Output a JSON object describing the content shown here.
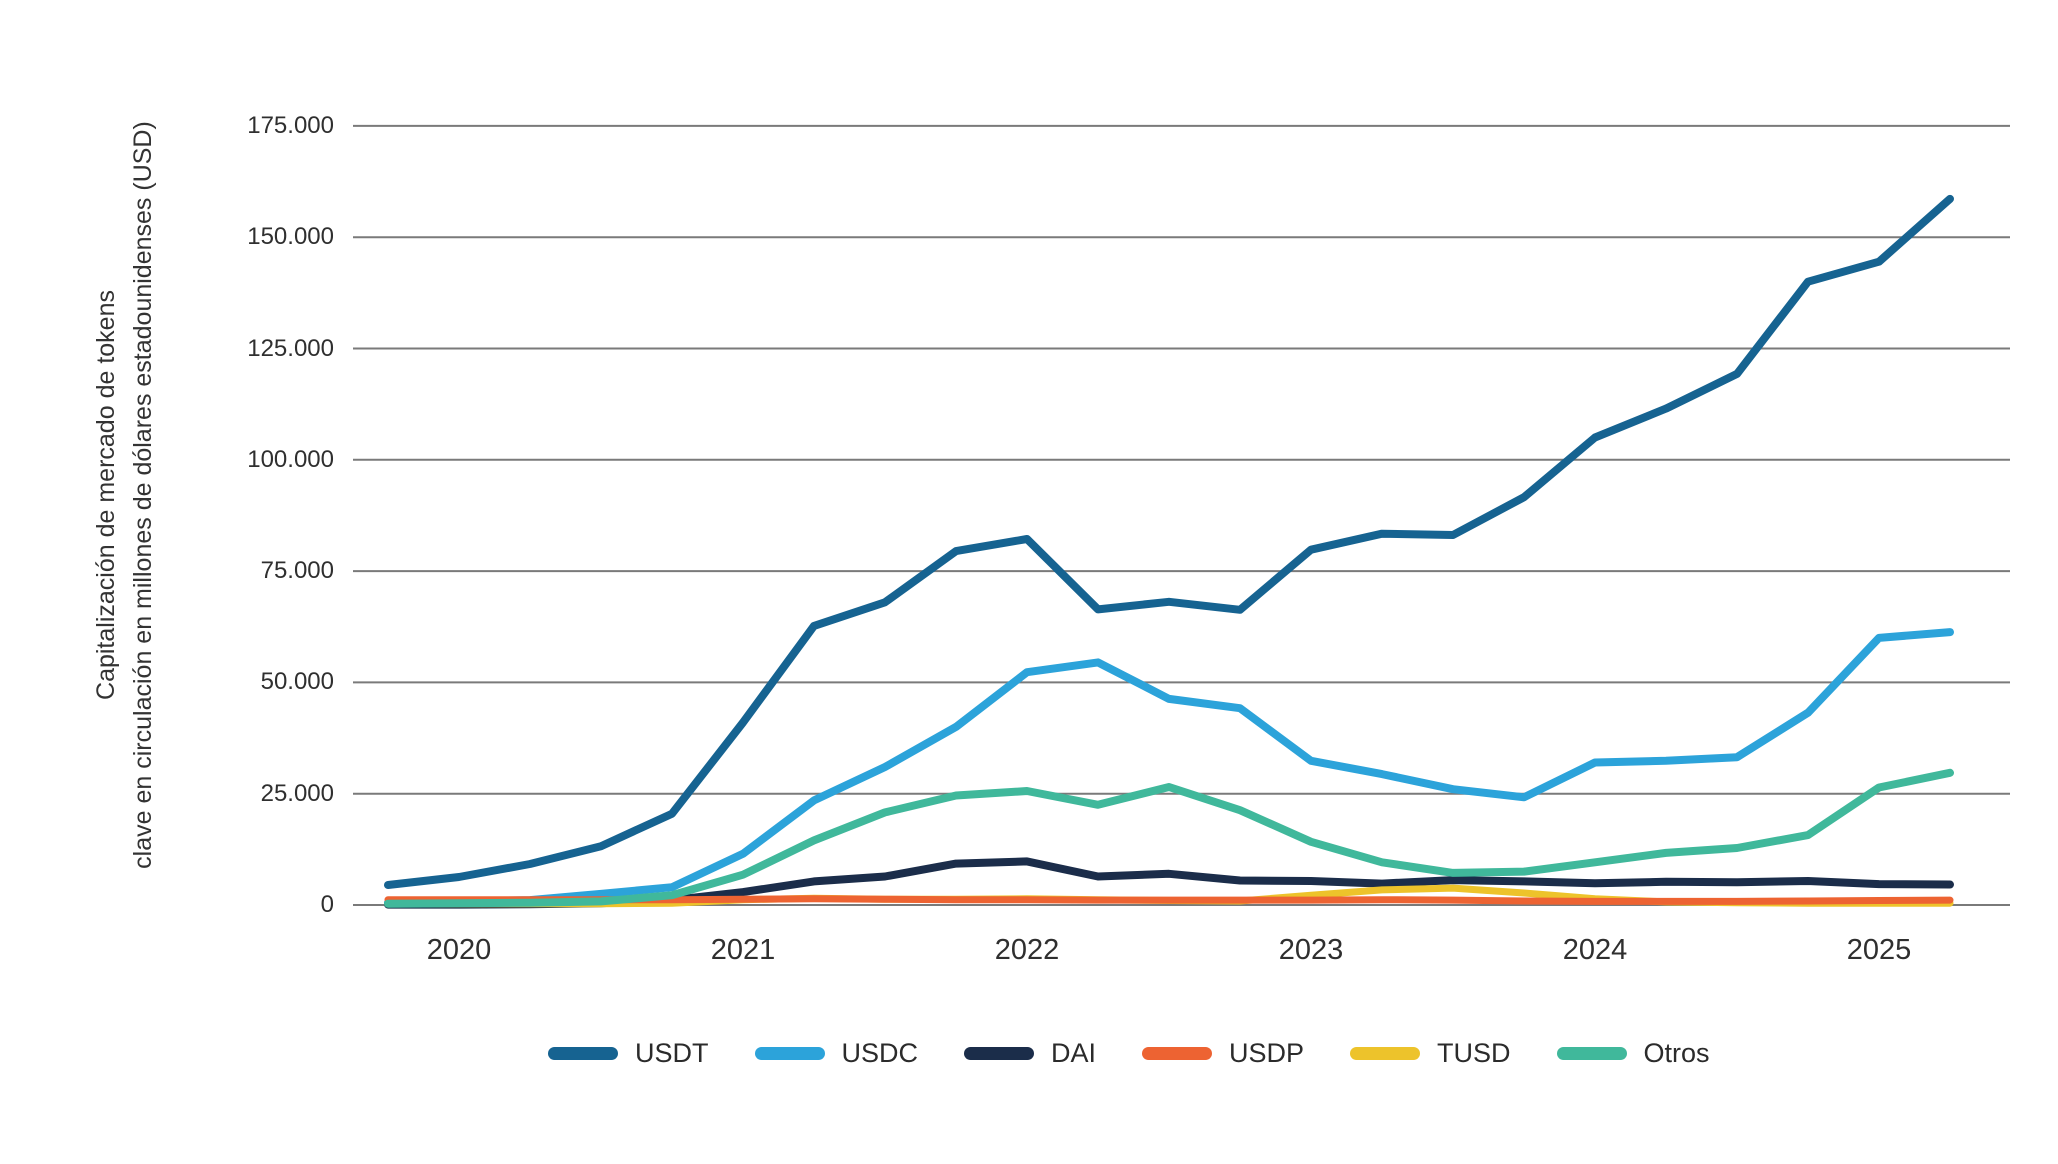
{
  "chart_data": {
    "type": "line",
    "title": "",
    "ylabel_line1": "Capitalización de mercado de tokens",
    "ylabel_line2": "clave en circulación en millones de dólares estadounidenses (USD)",
    "unit": "millones de dólares estadounidenses (USD)",
    "ylim": [
      0,
      175000
    ],
    "y_ticks": [
      0,
      25000,
      50000,
      75000,
      100000,
      125000,
      150000,
      175000
    ],
    "y_tick_labels": [
      "0",
      "25.000",
      "50.000",
      "75.000",
      "100.000",
      "125.000",
      "150.000",
      "175.000"
    ],
    "x_tick_labels": [
      "2020",
      "2021",
      "2022",
      "2023",
      "2024",
      "2025"
    ],
    "x_tick_point_indices": [
      1,
      5,
      9,
      13,
      17,
      21
    ],
    "points_per_year": 4,
    "first_point_period": "2019-T4",
    "last_point_period": "2025-T2",
    "grid": "horizontal",
    "legend_position": "bottom",
    "gridline_color": "#7a7a7a",
    "series": [
      {
        "name": "USDT",
        "color": "#166391",
        "stroke_width": 8,
        "values": [
          4500,
          6300,
          9200,
          13200,
          20500,
          41000,
          62700,
          68000,
          79500,
          82200,
          66400,
          68100,
          66300,
          79800,
          83400,
          83100,
          91600,
          105000,
          111500,
          119300,
          140000,
          144500,
          158600
        ]
      },
      {
        "name": "USDC",
        "color": "#2ca3da",
        "stroke_width": 8,
        "values": [
          500,
          800,
          1100,
          2500,
          4000,
          11500,
          23500,
          31000,
          40000,
          52300,
          54500,
          46300,
          44200,
          32400,
          29400,
          26000,
          24200,
          32000,
          32400,
          33200,
          43200,
          60000,
          61300
        ]
      },
      {
        "name": "DAI",
        "color": "#1b2d4a",
        "stroke_width": 8,
        "values": [
          100,
          100,
          150,
          400,
          1100,
          2900,
          5300,
          6400,
          9300,
          9800,
          6400,
          7000,
          5500,
          5400,
          4800,
          5600,
          5300,
          4900,
          5200,
          5100,
          5400,
          4700,
          4600
        ]
      },
      {
        "name": "USDP",
        "color": "#ed6332",
        "stroke_width": 7,
        "values": [
          1200,
          1200,
          1200,
          1200,
          1200,
          1300,
          1400,
          1300,
          1200,
          1200,
          1100,
          1100,
          1100,
          1100,
          1200,
          1100,
          900,
          800,
          800,
          800,
          900,
          1000,
          1100
        ]
      },
      {
        "name": "TUSD",
        "color": "#edc32b",
        "stroke_width": 7,
        "values": [
          300,
          300,
          300,
          300,
          400,
          1200,
          1500,
          1300,
          1300,
          1400,
          1200,
          1000,
          900,
          2200,
          3400,
          3800,
          2700,
          1400,
          700,
          500,
          400,
          400,
          400
        ]
      },
      {
        "name": "Otros",
        "color": "#40b89b",
        "stroke_width": 8,
        "values": [
          300,
          400,
          500,
          800,
          2200,
          6800,
          14500,
          20800,
          24600,
          25600,
          22500,
          26500,
          21300,
          14200,
          9600,
          7200,
          7500,
          9600,
          11700,
          12800,
          15700,
          26400,
          29700
        ]
      }
    ],
    "draw_order": [
      "USDT",
      "USDC",
      "DAI",
      "TUSD",
      "USDP",
      "Otros"
    ]
  },
  "legend": {
    "items": [
      {
        "label": "USDT",
        "color": "#166391"
      },
      {
        "label": "USDC",
        "color": "#2ca3da"
      },
      {
        "label": "DAI",
        "color": "#1b2d4a"
      },
      {
        "label": "USDP",
        "color": "#ed6332"
      },
      {
        "label": "TUSD",
        "color": "#edc32b"
      },
      {
        "label": "Otros",
        "color": "#40b89b"
      }
    ]
  }
}
